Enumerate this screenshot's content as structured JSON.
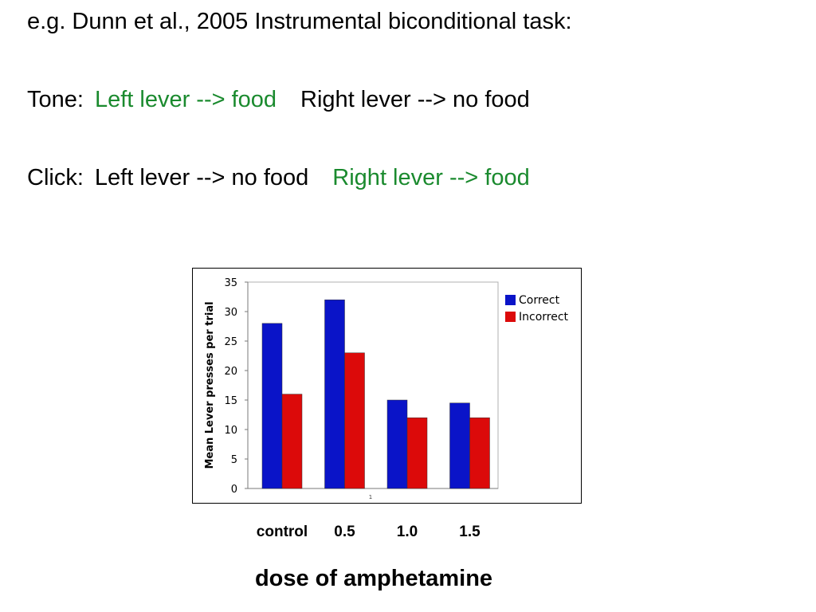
{
  "text": {
    "line1": "e.g. Dunn et al., 2005 Instrumental biconditional task:",
    "tone_label": "Tone:",
    "tone_green": "Left lever --> food",
    "tone_black": "Right lever --> no food",
    "click_label": "Click:",
    "click_black": "Left lever --> no food",
    "click_green": "Right lever --> food"
  },
  "colors": {
    "green_text": "#1a8a2e",
    "correct": "#0a14c8",
    "incorrect": "#dc0a0a"
  },
  "chart_data": {
    "type": "bar",
    "categories": [
      "control",
      "0.5",
      "1.0",
      "1.5"
    ],
    "series": [
      {
        "name": "Correct",
        "values": [
          28,
          32,
          15,
          14.5
        ]
      },
      {
        "name": "Incorrect",
        "values": [
          16,
          23,
          12,
          12
        ]
      }
    ],
    "ylabel": "Mean Lever presses per trial",
    "xlabel": "dose of amphetamine",
    "inner_axis_label": "1",
    "ylim": [
      0,
      35
    ],
    "yticks": [
      0,
      5,
      10,
      15,
      20,
      25,
      30,
      35
    ],
    "grid": false,
    "legend_position": "top-right"
  }
}
